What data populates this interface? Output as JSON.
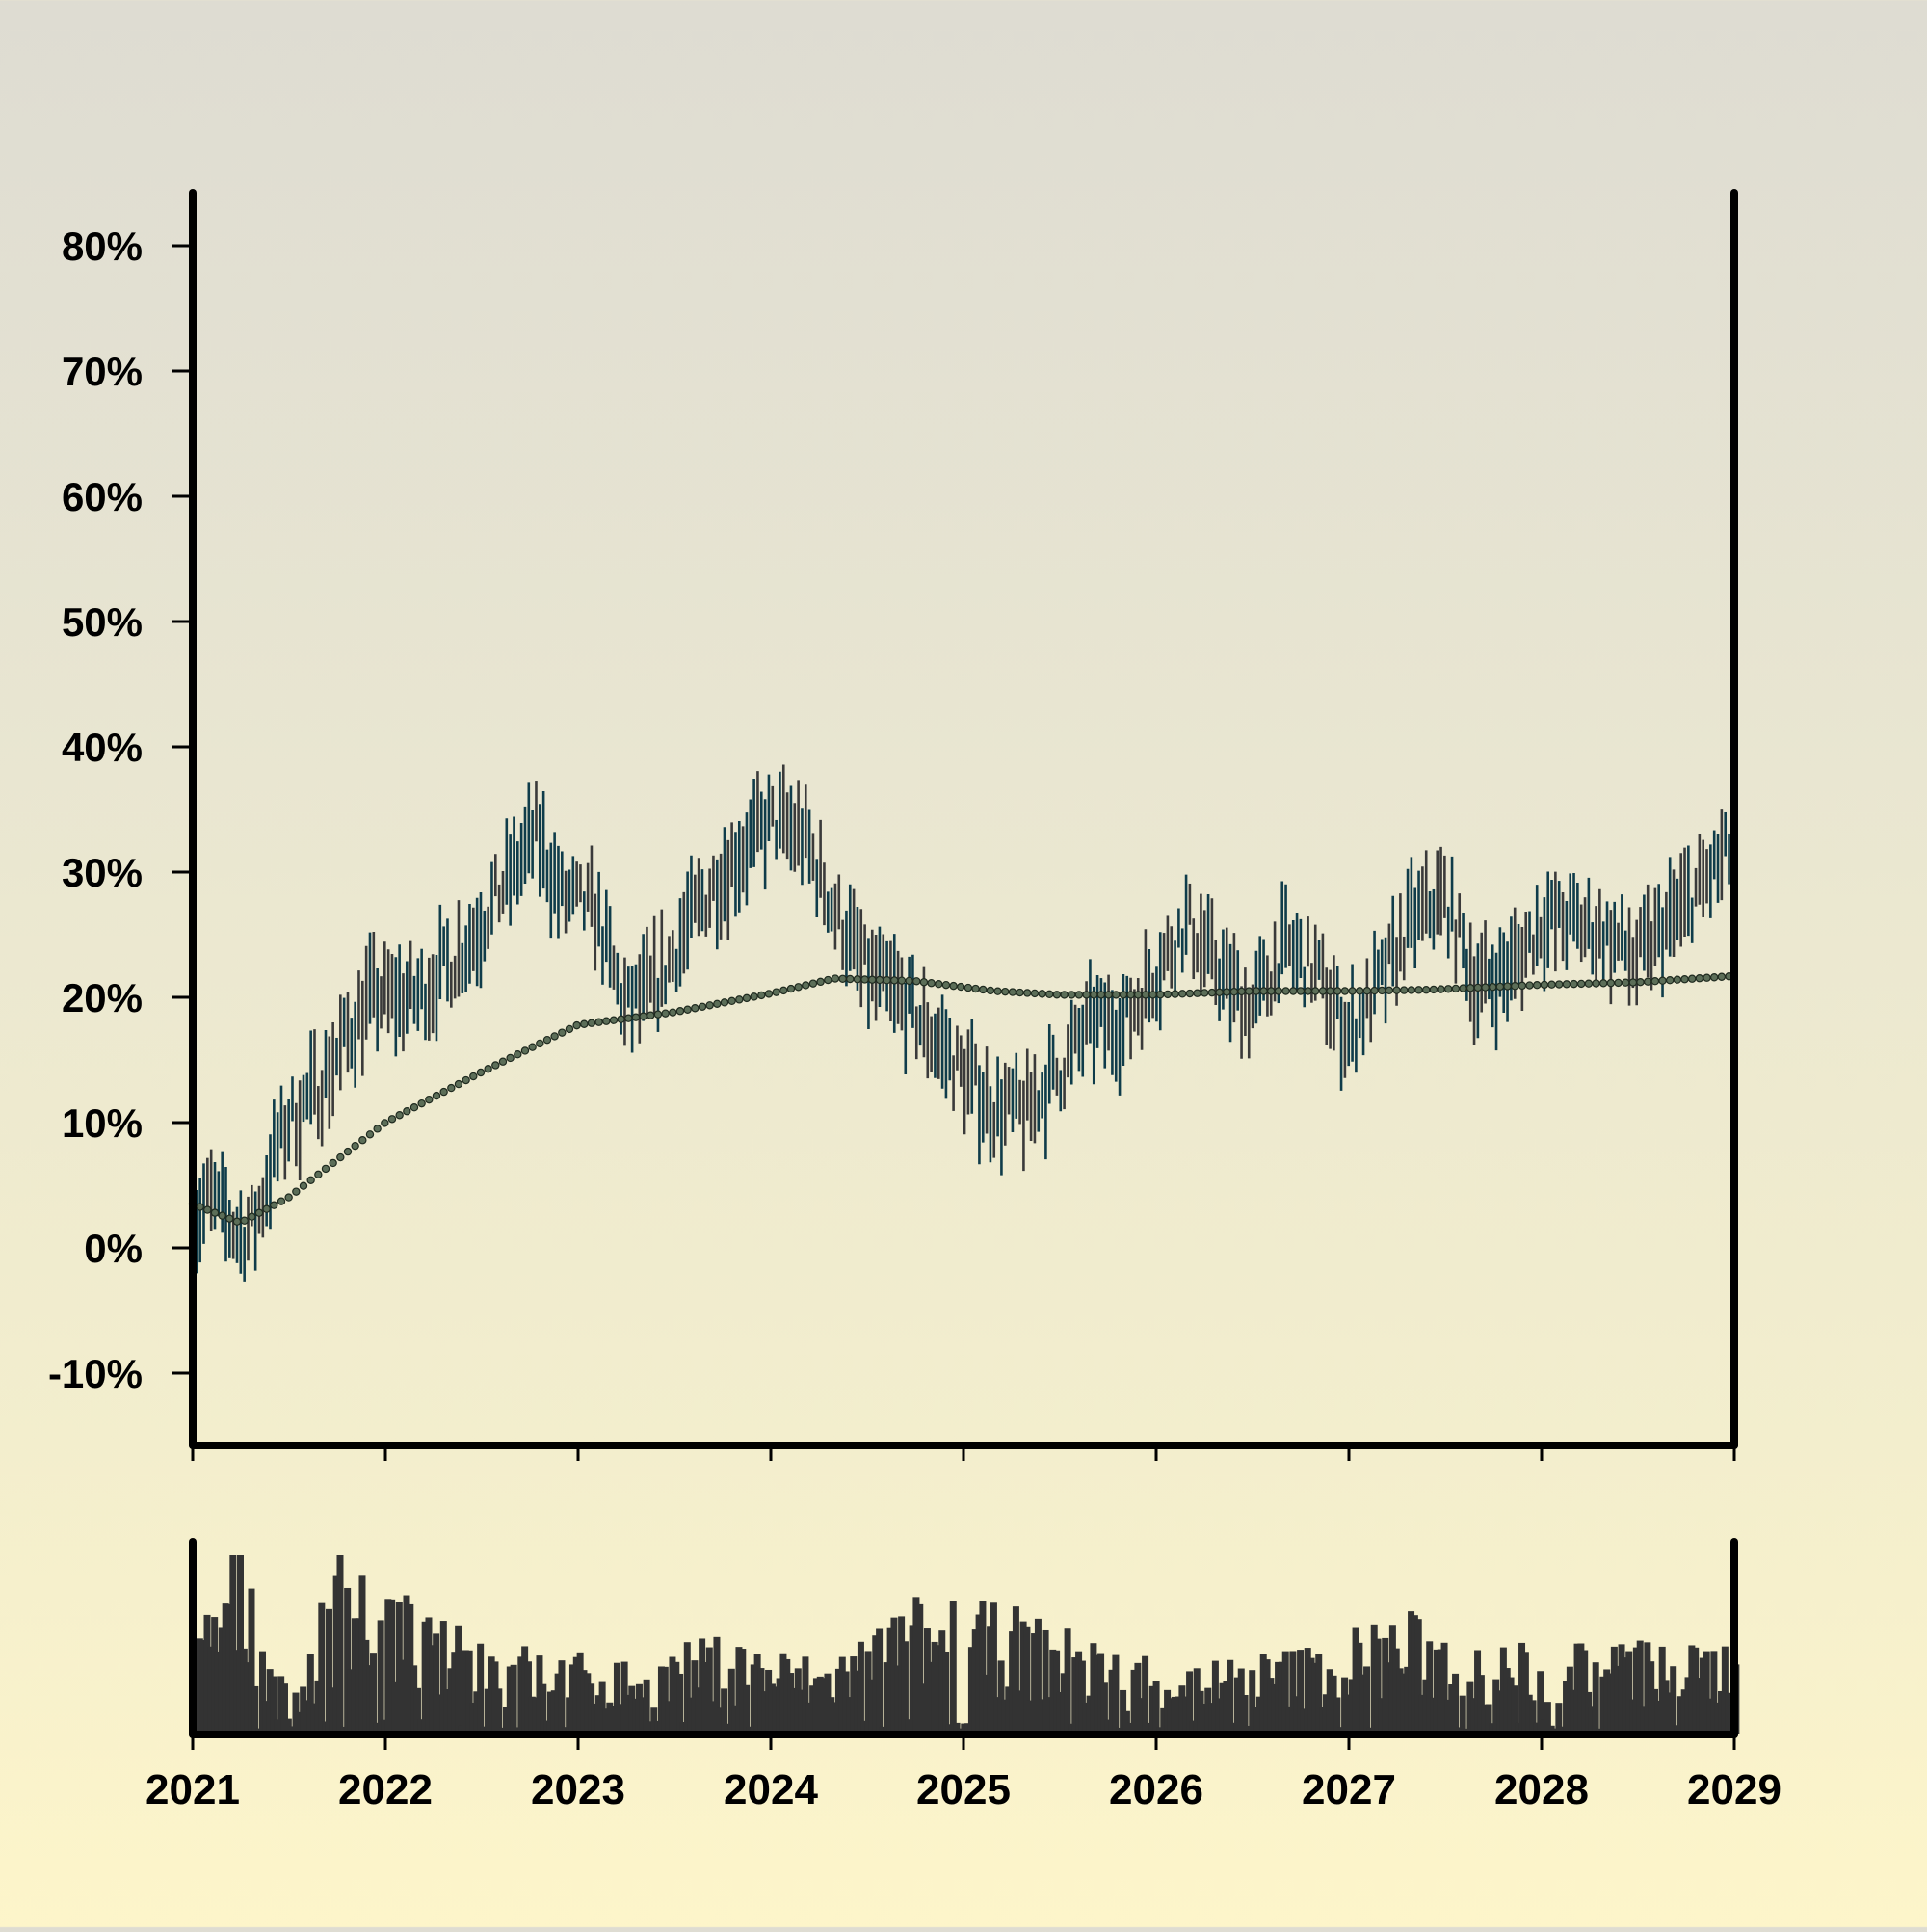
{
  "chart_data": {
    "type": "ohlc",
    "title": "",
    "xlabel": "",
    "ylabel": "",
    "x_ticks": [
      "2021",
      "2022",
      "2023",
      "2024",
      "2025",
      "2026",
      "2027",
      "2028",
      "2029"
    ],
    "y_ticks": [
      "-10%",
      "0%",
      "10%",
      "20%",
      "30%",
      "40%",
      "50%",
      "60%",
      "70%",
      "80%"
    ],
    "y_tick_values": [
      -10,
      0,
      10,
      20,
      30,
      40,
      50,
      60,
      70,
      80
    ],
    "xlim": [
      "2021-01-01",
      "2029-01-01"
    ],
    "ylim": [
      -15,
      85
    ],
    "grid": false,
    "legend": "none",
    "price_color": "#0f3c4a",
    "wick_color": "#3a3a3a",
    "moving_average_color": "#5c6e58",
    "volume_color": "#333333",
    "price_anchors": [
      [
        "2021-01-01",
        2
      ],
      [
        "2021-02-01",
        4
      ],
      [
        "2021-04-01",
        1
      ],
      [
        "2021-05-01",
        2
      ],
      [
        "2021-06-01",
        7
      ],
      [
        "2021-07-01",
        10
      ],
      [
        "2021-09-01",
        13
      ],
      [
        "2021-12-01",
        20
      ],
      [
        "2022-03-01",
        20
      ],
      [
        "2022-06-01",
        24
      ],
      [
        "2022-09-01",
        30
      ],
      [
        "2022-10-15",
        33
      ],
      [
        "2022-12-01",
        28
      ],
      [
        "2023-02-01",
        27
      ],
      [
        "2023-04-01",
        19
      ],
      [
        "2023-06-01",
        21
      ],
      [
        "2023-08-01",
        26
      ],
      [
        "2023-10-01",
        30
      ],
      [
        "2024-01-01",
        34
      ],
      [
        "2024-03-01",
        33
      ],
      [
        "2024-05-01",
        27
      ],
      [
        "2024-07-01",
        22
      ],
      [
        "2024-09-01",
        20
      ],
      [
        "2024-11-01",
        17
      ],
      [
        "2025-01-01",
        14
      ],
      [
        "2025-03-01",
        11
      ],
      [
        "2025-05-01",
        11
      ],
      [
        "2025-07-01",
        14
      ],
      [
        "2025-09-01",
        18
      ],
      [
        "2025-11-01",
        18
      ],
      [
        "2026-01-01",
        22
      ],
      [
        "2026-03-01",
        26
      ],
      [
        "2026-05-01",
        22
      ],
      [
        "2026-07-01",
        19
      ],
      [
        "2026-09-01",
        24
      ],
      [
        "2026-11-01",
        22
      ],
      [
        "2027-01-01",
        17
      ],
      [
        "2027-03-01",
        21
      ],
      [
        "2027-05-01",
        26
      ],
      [
        "2027-07-01",
        28
      ],
      [
        "2027-09-01",
        21
      ],
      [
        "2027-11-01",
        22
      ],
      [
        "2028-01-01",
        26
      ],
      [
        "2028-03-01",
        26
      ],
      [
        "2028-05-01",
        25
      ],
      [
        "2028-07-01",
        23
      ],
      [
        "2028-09-01",
        26
      ],
      [
        "2028-11-01",
        29
      ],
      [
        "2029-01-01",
        32
      ]
    ],
    "moving_average_anchors": [
      [
        "2021-01-01",
        3.5
      ],
      [
        "2021-04-01",
        2
      ],
      [
        "2021-07-01",
        4
      ],
      [
        "2022-01-01",
        10
      ],
      [
        "2022-07-01",
        14
      ],
      [
        "2023-01-01",
        17.8
      ],
      [
        "2023-07-01",
        18.8
      ],
      [
        "2024-01-01",
        20.3
      ],
      [
        "2024-05-01",
        21.5
      ],
      [
        "2024-10-01",
        21.3
      ],
      [
        "2025-03-01",
        20.5
      ],
      [
        "2025-07-01",
        20.2
      ],
      [
        "2026-01-01",
        20.2
      ],
      [
        "2026-07-01",
        20.5
      ],
      [
        "2027-01-01",
        20.5
      ],
      [
        "2027-06-01",
        20.6
      ],
      [
        "2028-01-01",
        21.0
      ],
      [
        "2028-07-01",
        21.2
      ],
      [
        "2029-01-01",
        21.7
      ]
    ],
    "volume_anchors": [
      [
        "2021-01-01",
        0.4
      ],
      [
        "2021-04-01",
        0.85
      ],
      [
        "2021-07-01",
        0.1
      ],
      [
        "2021-10-01",
        0.8
      ],
      [
        "2022-04-01",
        0.45
      ],
      [
        "2022-10-01",
        0.35
      ],
      [
        "2023-04-01",
        0.3
      ],
      [
        "2023-10-01",
        0.4
      ],
      [
        "2024-04-01",
        0.3
      ],
      [
        "2024-10-01",
        0.55
      ],
      [
        "2025-04-01",
        0.5
      ],
      [
        "2025-10-01",
        0.35
      ],
      [
        "2026-04-01",
        0.3
      ],
      [
        "2026-10-01",
        0.35
      ],
      [
        "2027-04-01",
        0.5
      ],
      [
        "2027-10-01",
        0.35
      ],
      [
        "2028-04-01",
        0.4
      ],
      [
        "2028-10-01",
        0.35
      ],
      [
        "2029-01-01",
        0.4
      ]
    ]
  }
}
